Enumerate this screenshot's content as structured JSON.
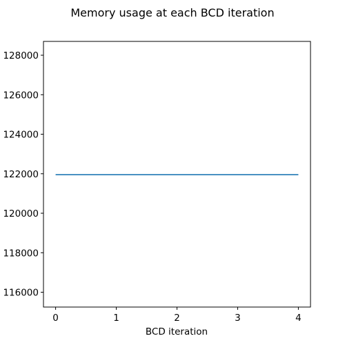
{
  "chart_data": {
    "type": "line",
    "title": "Memory usage at each BCD iteration",
    "xlabel": "BCD iteration",
    "ylabel": "",
    "x": [
      0,
      1,
      2,
      3,
      4
    ],
    "series": [
      {
        "values": [
          121950,
          121950,
          121950,
          121950,
          121950
        ],
        "color": "#1f77b4"
      }
    ],
    "xlim": [
      -0.2,
      4.2
    ],
    "ylim": [
      115250,
      128700
    ],
    "xticks": [
      0,
      1,
      2,
      3,
      4
    ],
    "xtick_labels": [
      "0",
      "1",
      "2",
      "3",
      "4"
    ],
    "yticks": [
      116000,
      118000,
      120000,
      122000,
      124000,
      126000,
      128000
    ],
    "ytick_labels": [
      "116000",
      "118000",
      "120000",
      "122000",
      "124000",
      "126000",
      "128000"
    ],
    "grid": false,
    "legend": "none"
  }
}
